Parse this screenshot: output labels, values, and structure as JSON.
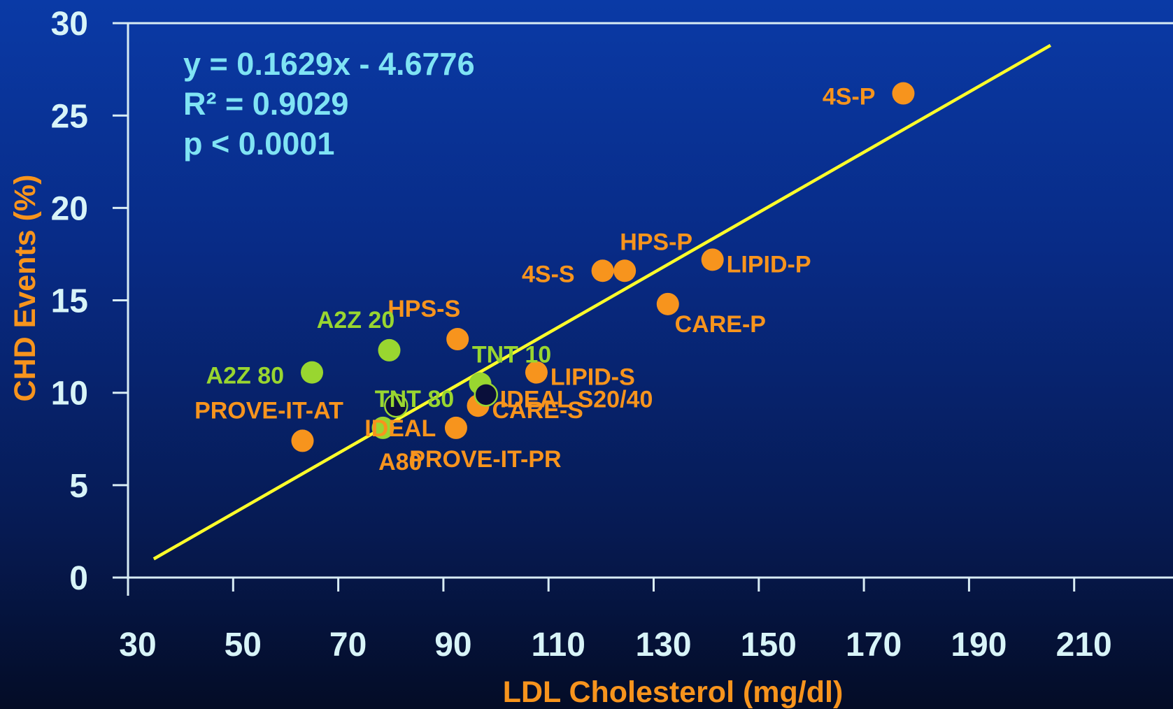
{
  "colors": {
    "axis": "#d8ecf4",
    "tick_text": "#d8f4f8",
    "axis_title": "#f7941d",
    "regression_line": "#ffff2a",
    "equation_text": "#7fe3f4",
    "orange_points": "#f7941d",
    "green_points": "#99d630",
    "dark_points": "#0a0f3a"
  },
  "chart_data": {
    "type": "scatter",
    "xlabel": "LDL Cholesterol (mg/dl)",
    "ylabel": "CHD Events (%)",
    "xlim": [
      30,
      230
    ],
    "ylim": [
      0,
      30
    ],
    "x_ticks": [
      30,
      50,
      70,
      90,
      110,
      130,
      150,
      170,
      190,
      210
    ],
    "y_ticks": [
      0,
      5,
      10,
      15,
      20,
      25,
      30
    ],
    "grid": false,
    "annotations": [
      "y = 0.1629x - 4.6776",
      "R² = 0.9029",
      "p < 0.0001"
    ],
    "regression": {
      "slope": 0.1629,
      "intercept": -4.6776,
      "x_range": [
        34.9,
        205.5
      ]
    },
    "points": [
      {
        "label": "4S-P",
        "x": 177.5,
        "y": 26.2,
        "color": "orange",
        "label_pos": "left"
      },
      {
        "label": "HPS-P",
        "x": 124.5,
        "y": 16.6,
        "color": "orange",
        "label_pos": "above"
      },
      {
        "label": "4S-S",
        "x": 120.3,
        "y": 16.6,
        "color": "orange",
        "label_pos": "left"
      },
      {
        "label": "LIPID-P",
        "x": 141.2,
        "y": 17.2,
        "color": "orange",
        "label_pos": "right"
      },
      {
        "label": "CARE-P",
        "x": 132.7,
        "y": 14.8,
        "color": "orange",
        "label_pos": "below-right"
      },
      {
        "label": "HPS-S",
        "x": 92.7,
        "y": 12.9,
        "color": "orange",
        "label_pos": "above-left"
      },
      {
        "label": "LIPID-S",
        "x": 107.7,
        "y": 11.1,
        "color": "orange",
        "label_pos": "right"
      },
      {
        "label": "CARE-S",
        "x": 96.6,
        "y": 9.3,
        "color": "orange",
        "label_pos": "right"
      },
      {
        "label": "PROVE-IT-PR",
        "x": 92.4,
        "y": 8.1,
        "color": "orange",
        "label_pos": "below"
      },
      {
        "label": "PROVE-IT-AT",
        "x": 63.2,
        "y": 7.4,
        "color": "orange",
        "label_pos": "above-left"
      },
      {
        "label": "A2Z 20",
        "x": 79.7,
        "y": 12.3,
        "color": "green",
        "label_pos": "above-left"
      },
      {
        "label": "A2Z 80",
        "x": 65.0,
        "y": 11.1,
        "color": "green",
        "label_pos": "left"
      },
      {
        "label": "TNT 10",
        "x": 97.0,
        "y": 10.5,
        "color": "green",
        "label_pos": "above"
      },
      {
        "label": "TNT 80",
        "x": 78.5,
        "y": 8.1,
        "color": "green",
        "label_pos": "above"
      },
      {
        "label": "IDEAL A80",
        "x": 81.0,
        "y": 9.3,
        "color": "dark",
        "label_pos": "below",
        "label_lines": [
          "IDEAL",
          "A80"
        ]
      },
      {
        "label": "IDEAL S20/40",
        "x": 98.1,
        "y": 9.9,
        "color": "dark",
        "label_pos": "right"
      }
    ]
  }
}
